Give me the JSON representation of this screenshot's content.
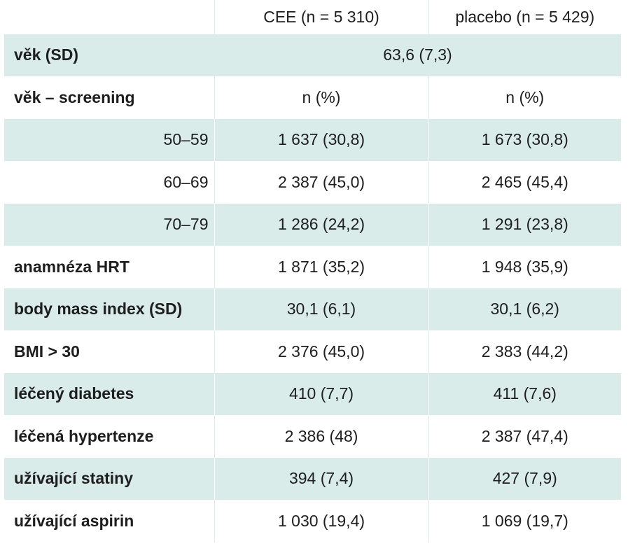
{
  "header": {
    "label": "",
    "col_cee": "CEE (n = 5 310)",
    "col_placebo": "placebo (n = 5 429)"
  },
  "rows": [
    {
      "label": "věk (SD)",
      "merged": "63,6 (7,3)",
      "shaded": true
    },
    {
      "label": "věk – screening",
      "cee": "n (%)",
      "placebo": "n (%)",
      "shaded": false
    },
    {
      "label": "50–59",
      "cee": "1 637 (30,8)",
      "placebo": "1 673 (30,8)",
      "shaded": true,
      "sub": true
    },
    {
      "label": "60–69",
      "cee": "2 387 (45,0)",
      "placebo": "2 465 (45,4)",
      "shaded": false,
      "sub": true
    },
    {
      "label": "70–79",
      "cee": "1 286 (24,2)",
      "placebo": "1 291 (23,8)",
      "shaded": true,
      "sub": true
    },
    {
      "label": "anamnéza HRT",
      "cee": "1 871 (35,2)",
      "placebo": "1 948 (35,9)",
      "shaded": false
    },
    {
      "label": "body mass index (SD)",
      "cee": "30,1 (6,1)",
      "placebo": "30,1 (6,2)",
      "shaded": true
    },
    {
      "label": "BMI > 30",
      "cee": "2 376 (45,0)",
      "placebo": "2 383 (44,2)",
      "shaded": false
    },
    {
      "label": "léčený diabetes",
      "cee": "410 (7,7)",
      "placebo": "411 (7,6)",
      "shaded": true
    },
    {
      "label": "léčená hypertenze",
      "cee": "2 386 (48)",
      "placebo": "2 387 (47,4)",
      "shaded": false
    },
    {
      "label": "užívající statiny",
      "cee": "394 (7,4)",
      "placebo": "427 (7,9)",
      "shaded": true
    },
    {
      "label": "užívající aspirin",
      "cee": "1 030 (19,4)",
      "placebo": "1 069 (19,7)",
      "shaded": false
    }
  ],
  "colors": {
    "row_shade": "#d9ece9",
    "text": "#1e1e1e"
  }
}
